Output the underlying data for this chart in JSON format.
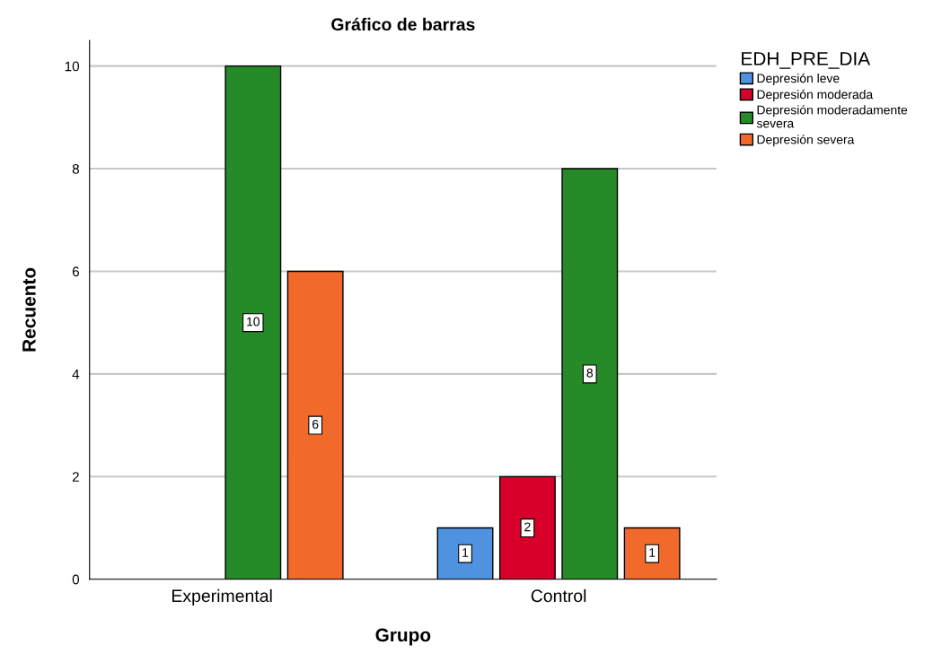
{
  "chart_data": {
    "type": "bar",
    "title": "Gráfico de barras",
    "xlabel": "Grupo",
    "ylabel": "Recuento",
    "legend_title": "EDH_PRE_DIA",
    "categories": [
      "Experimental",
      "Control"
    ],
    "series": [
      {
        "name": "Depresión leve",
        "color": "#4f93e0",
        "values": [
          null,
          1
        ]
      },
      {
        "name": "Depresión moderada",
        "color": "#d6002b",
        "values": [
          null,
          2
        ]
      },
      {
        "name": "Depresión moderadamente\nsevera",
        "color": "#278a28",
        "values": [
          10,
          8
        ]
      },
      {
        "name": "Depresión severa",
        "color": "#f26a2b",
        "values": [
          6,
          1
        ]
      }
    ],
    "ylim": [
      0,
      10.5
    ],
    "yticks": [
      0,
      2,
      4,
      6,
      8,
      10
    ],
    "grid": "y",
    "legend": "top right",
    "data_labels": true
  }
}
